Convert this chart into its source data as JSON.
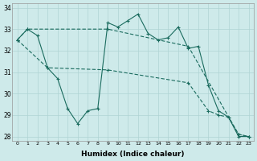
{
  "xlabel": "Humidex (Indice chaleur)",
  "background_color": "#ceeaea",
  "grid_color": "#afd4d4",
  "line_color": "#1a6b5e",
  "xlim": [
    -0.5,
    23.5
  ],
  "ylim": [
    27.8,
    34.2
  ],
  "yticks": [
    28,
    29,
    30,
    31,
    32,
    33,
    34
  ],
  "xticks": [
    0,
    1,
    2,
    3,
    4,
    5,
    6,
    7,
    8,
    9,
    10,
    11,
    12,
    13,
    14,
    15,
    16,
    17,
    18,
    19,
    20,
    21,
    22,
    23
  ],
  "line1_x": [
    0,
    1,
    2,
    3,
    4,
    5,
    6,
    7,
    8,
    9,
    10,
    11,
    12,
    13,
    14,
    15,
    16,
    17,
    18,
    19,
    20,
    21,
    22,
    23
  ],
  "line1_y": [
    32.5,
    33.0,
    32.7,
    31.2,
    30.7,
    29.3,
    28.6,
    29.2,
    29.3,
    33.3,
    33.1,
    33.4,
    33.7,
    32.8,
    32.5,
    32.6,
    33.1,
    32.1,
    32.2,
    30.4,
    29.2,
    28.9,
    28.0,
    28.0
  ],
  "line2_x": [
    0,
    1,
    9,
    17,
    22,
    23
  ],
  "line2_y": [
    32.5,
    33.0,
    33.0,
    32.2,
    28.1,
    28.0
  ],
  "line3_x": [
    0,
    3,
    9,
    17,
    19,
    20,
    21,
    22,
    23
  ],
  "line3_y": [
    32.5,
    31.2,
    31.1,
    30.5,
    29.2,
    29.0,
    28.9,
    28.1,
    28.0
  ]
}
